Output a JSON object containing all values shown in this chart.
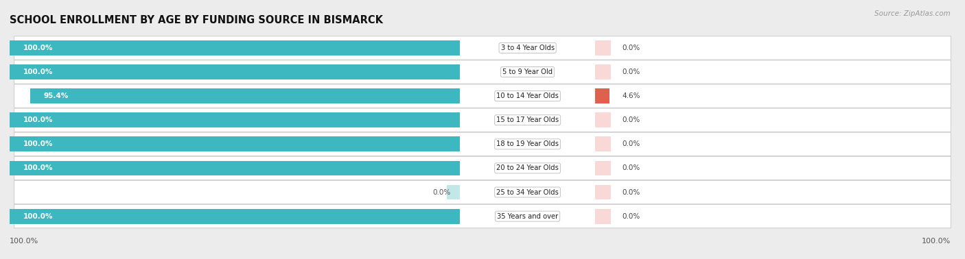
{
  "title": "SCHOOL ENROLLMENT BY AGE BY FUNDING SOURCE IN BISMARCK",
  "source": "Source: ZipAtlas.com",
  "categories": [
    "3 to 4 Year Olds",
    "5 to 9 Year Old",
    "10 to 14 Year Olds",
    "15 to 17 Year Olds",
    "18 to 19 Year Olds",
    "20 to 24 Year Olds",
    "25 to 34 Year Olds",
    "35 Years and over"
  ],
  "public_pct": [
    100.0,
    100.0,
    95.4,
    100.0,
    100.0,
    100.0,
    0.0,
    100.0
  ],
  "private_pct": [
    0.0,
    0.0,
    4.6,
    0.0,
    0.0,
    0.0,
    0.0,
    0.0
  ],
  "public_color": "#3db8c0",
  "public_color_zero": "#a8dde0",
  "private_color_normal": "#f5b8b8",
  "private_color_strong": "#e06050",
  "background_color": "#ececec",
  "row_bg_color": "#ffffff",
  "title_fontsize": 10.5,
  "bar_height": 0.62,
  "bottom_left_label": "100.0%",
  "bottom_right_label": "100.0%"
}
